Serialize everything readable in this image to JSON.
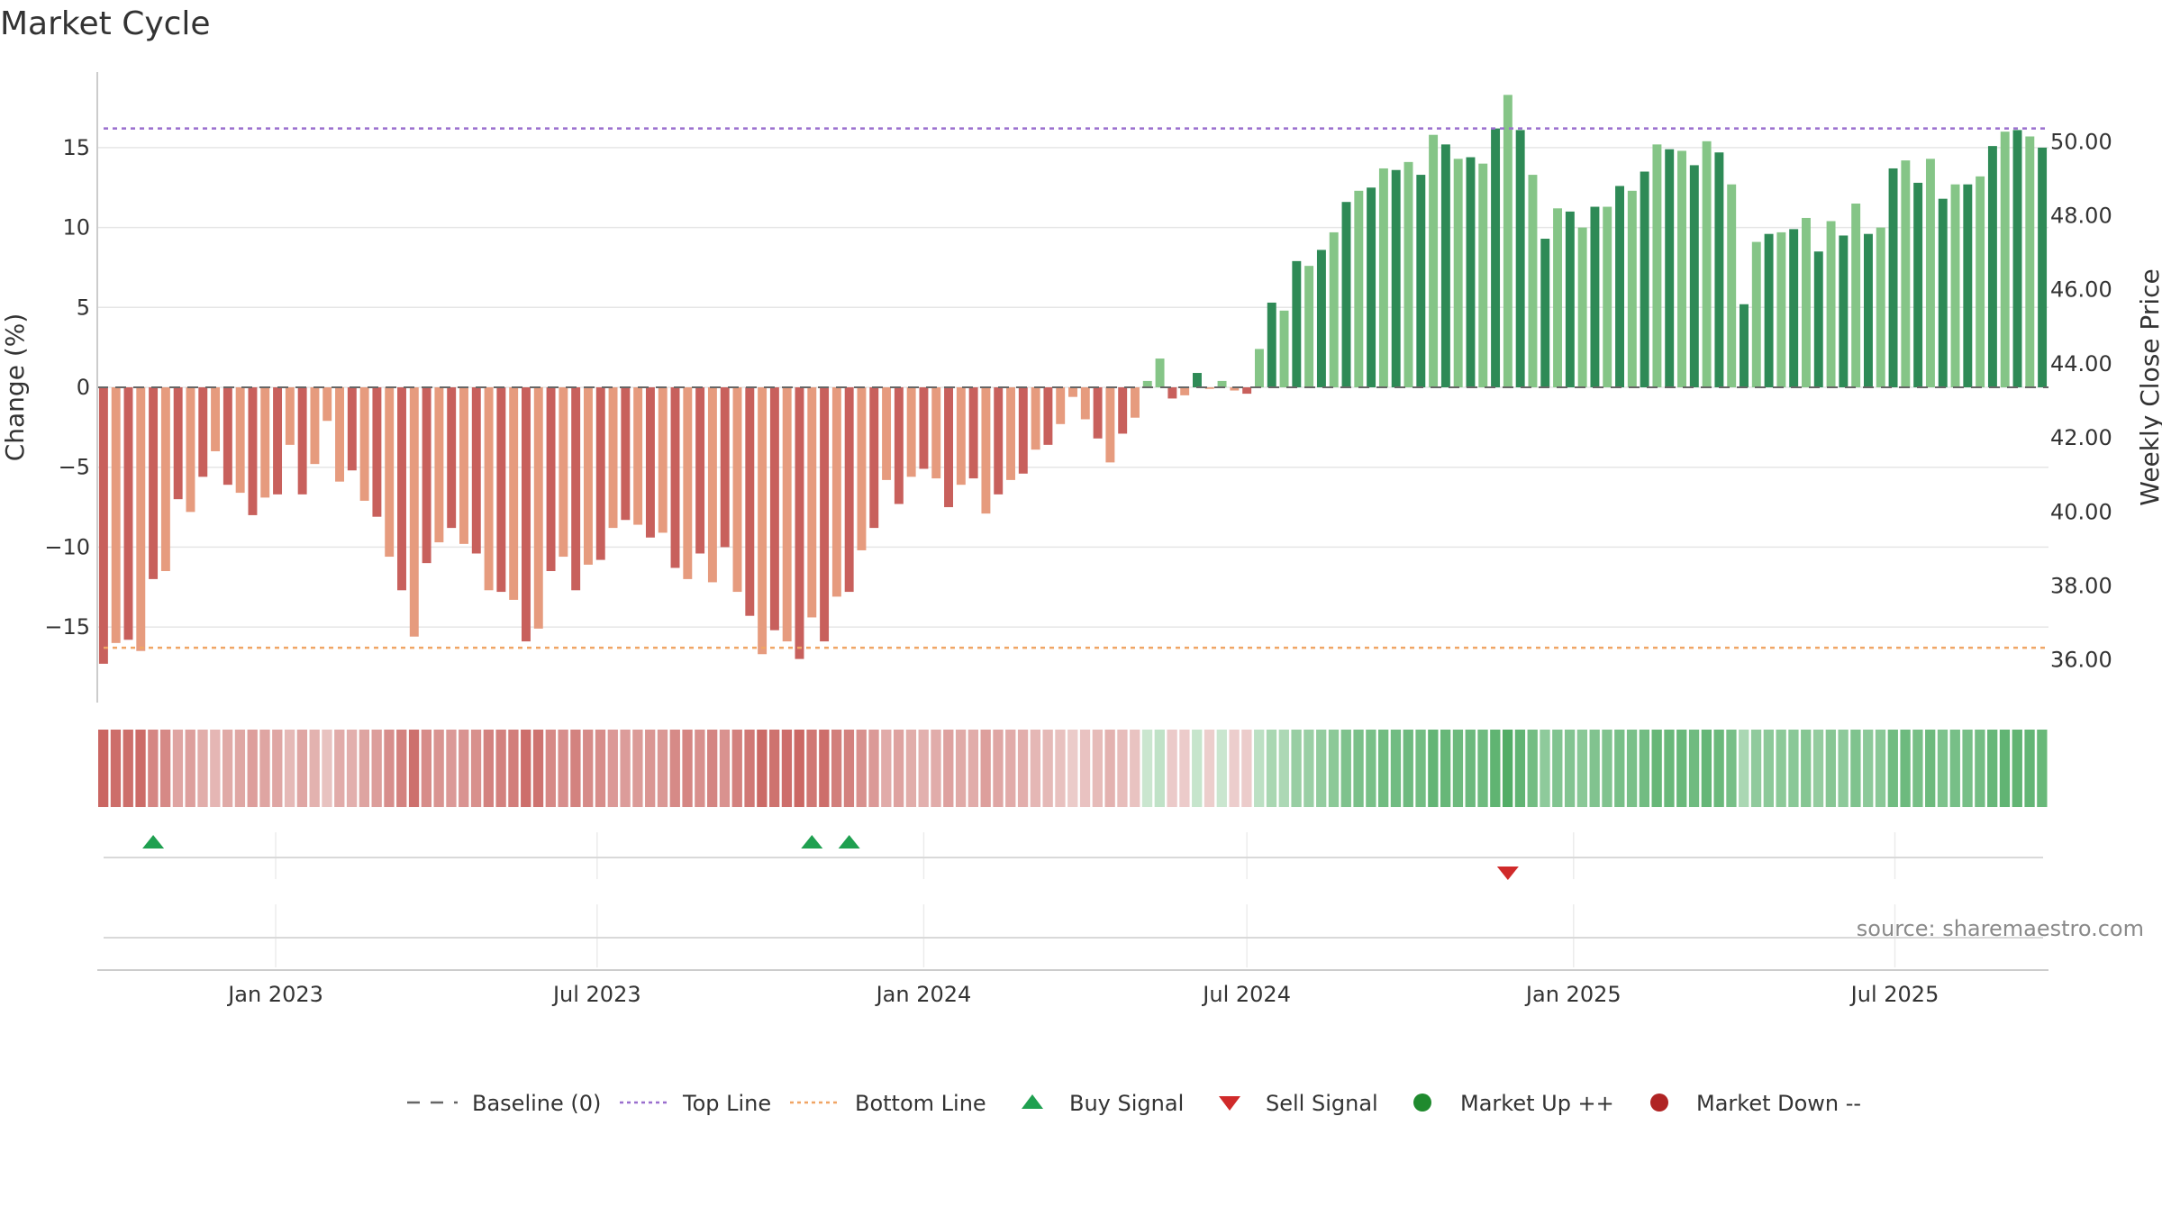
{
  "title": "Market Cycle",
  "source": "source: sharemaestro.com",
  "colors": {
    "neg_strong": "#c8605c",
    "neg_light": "#e69b7e",
    "pos_strong": "#2e8a56",
    "pos_light": "#85c587",
    "top_line": "#9a6fce",
    "bottom_line": "#f0a565",
    "baseline": "#666666",
    "buy": "#1fa050",
    "sell": "#d02a2a",
    "market_up": "#1f8a2e",
    "market_down": "#b02424"
  },
  "legend": [
    {
      "label": "Baseline (0)",
      "symbol": "dash-line",
      "color": "#666666"
    },
    {
      "label": "Top Line",
      "symbol": "dot-line",
      "color": "#9a6fce"
    },
    {
      "label": "Bottom Line",
      "symbol": "dot-line",
      "color": "#f0a565"
    },
    {
      "label": "Buy Signal",
      "symbol": "triangle-up",
      "color": "#1fa050"
    },
    {
      "label": "Sell Signal",
      "symbol": "triangle-down",
      "color": "#d02a2a"
    },
    {
      "label": "Market Up ++",
      "symbol": "circle",
      "color": "#1f8a2e"
    },
    {
      "label": "Market Down --",
      "symbol": "circle",
      "color": "#b02424"
    }
  ],
  "chart_data": {
    "type": "bar",
    "title": "Market Cycle",
    "ylabel_left": "Change (%)",
    "ylabel_right": "Weekly Close Price",
    "y_left_ticks": [
      15,
      10,
      5,
      0,
      -5,
      -10,
      -15
    ],
    "y_left_tick_labels": [
      "15",
      "10",
      "5",
      "0",
      "−5",
      "−10",
      "−15"
    ],
    "y_right_ticks": [
      50,
      48,
      46,
      44,
      42,
      40,
      38,
      36
    ],
    "y_right_tick_labels": [
      "50.00",
      "48.00",
      "46.00",
      "44.00",
      "42.00",
      "40.00",
      "38.00",
      "36.00"
    ],
    "ylim_left": [
      -19.5,
      19.5
    ],
    "ylim_right": [
      34.85,
      51.88
    ],
    "x_ticks": [
      "2023-01-01",
      "2023-07-01",
      "2024-01-01",
      "2024-07-01",
      "2025-01-01",
      "2025-07-01"
    ],
    "x_tick_labels": [
      "Jan 2023",
      "Jul 2023",
      "Jan 2024",
      "Jul 2024",
      "Jan 2025",
      "Jul 2025"
    ],
    "start_date": "2022-09-26",
    "top_line": 16.2,
    "bottom_line": -16.3,
    "baseline": 0,
    "grid": true,
    "legend_position": "bottom",
    "values": [
      -17.3,
      -16.0,
      -15.8,
      -16.5,
      -12.0,
      -11.5,
      -7.0,
      -7.8,
      -5.6,
      -4.0,
      -6.1,
      -6.6,
      -8.0,
      -6.9,
      -6.7,
      -3.6,
      -6.7,
      -4.8,
      -2.1,
      -5.9,
      -5.2,
      -7.1,
      -8.1,
      -10.6,
      -12.7,
      -15.6,
      -11.0,
      -9.7,
      -8.8,
      -9.8,
      -10.4,
      -12.7,
      -12.8,
      -13.3,
      -15.9,
      -15.1,
      -11.5,
      -10.6,
      -12.7,
      -11.1,
      -10.8,
      -8.8,
      -8.3,
      -8.6,
      -9.4,
      -9.1,
      -11.3,
      -12.0,
      -10.4,
      -12.2,
      -10.0,
      -12.8,
      -14.3,
      -16.7,
      -15.2,
      -15.9,
      -17.0,
      -14.4,
      -15.9,
      -13.1,
      -12.8,
      -10.2,
      -8.8,
      -5.8,
      -7.3,
      -5.6,
      -5.1,
      -5.7,
      -7.5,
      -6.1,
      -5.7,
      -7.9,
      -6.7,
      -5.8,
      -5.4,
      -3.9,
      -3.6,
      -2.3,
      -0.6,
      -2.0,
      -3.2,
      -4.7,
      -2.9,
      -1.9,
      0.4,
      1.8,
      -0.7,
      -0.5,
      0.9,
      -0.1,
      0.4,
      -0.2,
      -0.4,
      2.4,
      5.3,
      4.8,
      7.9,
      7.6,
      8.6,
      9.7,
      11.6,
      12.3,
      12.5,
      13.7,
      13.6,
      14.1,
      13.3,
      15.8,
      15.2,
      14.3,
      14.4,
      14.0,
      16.2,
      18.3,
      16.1,
      13.3,
      9.3,
      11.2,
      11.0,
      10.0,
      11.3,
      11.3,
      12.6,
      12.3,
      13.5,
      15.2,
      14.9,
      14.8,
      13.9,
      15.4,
      14.7,
      12.7,
      5.2,
      9.1,
      9.6,
      9.7,
      9.9,
      10.6,
      8.5,
      10.4,
      9.5,
      11.5,
      9.6,
      10.0,
      13.7,
      14.2,
      12.8,
      14.3,
      11.8,
      12.7,
      12.7,
      13.2,
      15.1,
      16.0,
      16.1,
      15.7,
      15.0
    ],
    "series": [
      {
        "name": "Baseline (0)",
        "values": [
          0
        ]
      },
      {
        "name": "Top Line",
        "values": [
          16.2
        ]
      },
      {
        "name": "Bottom Line",
        "values": [
          -16.3
        ]
      }
    ],
    "buy_signals": [
      "2022-10-24",
      "2023-10-30",
      "2023-11-20"
    ],
    "sell_signals": [
      "2024-11-25"
    ],
    "market_up": [],
    "market_down": []
  }
}
